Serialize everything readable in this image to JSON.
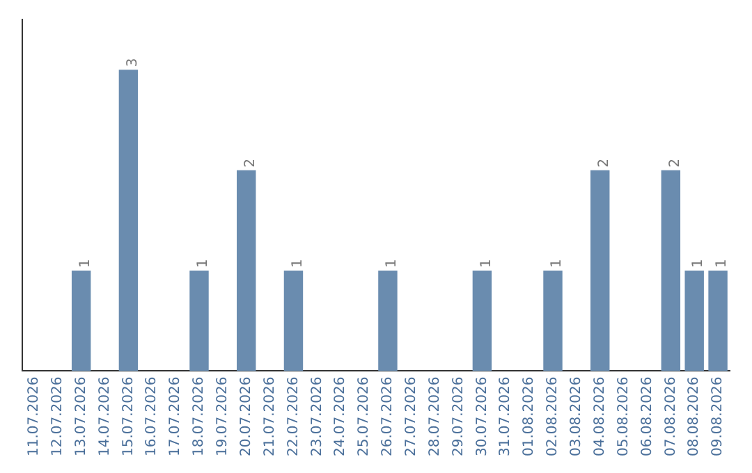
{
  "chart_data": {
    "type": "bar",
    "categories": [
      "11.07.2026",
      "12.07.2026",
      "13.07.2026",
      "14.07.2026",
      "15.07.2026",
      "16.07.2026",
      "17.07.2026",
      "18.07.2026",
      "19.07.2026",
      "20.07.2026",
      "21.07.2026",
      "22.07.2026",
      "23.07.2026",
      "24.07.2026",
      "25.07.2026",
      "26.07.2026",
      "27.07.2026",
      "28.07.2026",
      "29.07.2026",
      "30.07.2026",
      "31.07.2026",
      "01.08.2026",
      "02.08.2026",
      "03.08.2026",
      "04.08.2026",
      "05.08.2026",
      "06.08.2026",
      "07.08.2026",
      "08.08.2026",
      "09.08.2026"
    ],
    "values": [
      0,
      0,
      1,
      0,
      3,
      0,
      0,
      1,
      0,
      2,
      0,
      1,
      0,
      0,
      0,
      1,
      0,
      0,
      0,
      1,
      0,
      0,
      1,
      0,
      2,
      0,
      0,
      2,
      1,
      1
    ],
    "value_labels": [
      null,
      null,
      "1",
      null,
      "3",
      null,
      null,
      "1",
      null,
      "2",
      null,
      "1",
      null,
      null,
      null,
      "1",
      null,
      null,
      null,
      "1",
      null,
      null,
      "1",
      null,
      "2",
      null,
      null,
      "2",
      "1",
      "1"
    ],
    "color": "#6a8caf",
    "tick_labels": "x",
    "grid": false,
    "legend": false
  }
}
